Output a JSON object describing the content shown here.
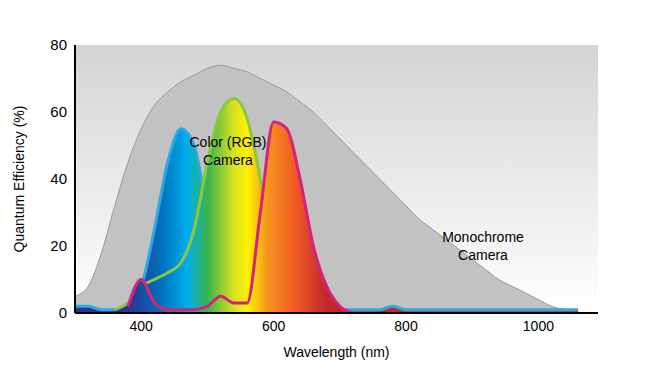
{
  "chart_data": {
    "type": "area",
    "x_label": "Wavelength (nm)",
    "y_label": "Quantum Efficiency (%)",
    "annotations": [
      [
        "Color (RGB)",
        "Camera"
      ],
      [
        "Monochrome",
        "Camera"
      ]
    ],
    "x": [
      300,
      320,
      340,
      360,
      380,
      400,
      420,
      440,
      460,
      480,
      500,
      520,
      540,
      560,
      580,
      600,
      620,
      640,
      660,
      680,
      700,
      720,
      740,
      760,
      780,
      800,
      820,
      840,
      860,
      880,
      900,
      920,
      940,
      960,
      980,
      1000,
      1020,
      1040,
      1060
    ],
    "series": [
      {
        "color": "#999999",
        "values": [
          5,
          8,
          18,
          32,
          45,
          55,
          62,
          66,
          69,
          71,
          73,
          74,
          73,
          72,
          70,
          68,
          66,
          63,
          60,
          56,
          52,
          48,
          44,
          40,
          36,
          32,
          28,
          25,
          22,
          19,
          16,
          13,
          10,
          8,
          6,
          4,
          2,
          1,
          0
        ]
      },
      {
        "color": "#29abe2",
        "values": [
          2,
          2,
          1,
          1,
          3,
          8,
          25,
          45,
          55,
          50,
          30,
          12,
          4,
          2,
          1,
          1,
          1,
          1,
          1,
          1,
          1,
          1,
          1,
          1,
          2,
          1,
          1,
          1,
          1,
          1,
          1,
          1,
          1,
          1,
          1,
          1,
          1,
          1,
          1
        ]
      },
      {
        "color": "#8dc63f",
        "values": [
          null,
          null,
          null,
          1,
          3,
          8,
          10,
          12,
          15,
          25,
          45,
          60,
          64,
          58,
          40,
          15,
          5,
          3,
          3,
          1,
          0,
          null,
          null,
          null,
          null,
          null,
          null,
          null,
          null,
          null,
          null,
          null,
          null,
          null,
          null,
          null,
          null,
          null,
          null
        ]
      },
      {
        "color": "#d4237a",
        "values": [
          null,
          null,
          null,
          null,
          2,
          10,
          3,
          1,
          1,
          1,
          2,
          5,
          3,
          3,
          30,
          57,
          55,
          40,
          20,
          8,
          2,
          0,
          null,
          null,
          null,
          null,
          null,
          null,
          null,
          null,
          null,
          null,
          null,
          null,
          null,
          null,
          null,
          null,
          null
        ]
      }
    ],
    "xlim": [
      300,
      1090
    ],
    "ylim": [
      0,
      80
    ],
    "xticks": [
      400,
      600,
      800,
      1000
    ],
    "yticks": [
      0,
      20,
      40,
      60,
      80
    ]
  }
}
